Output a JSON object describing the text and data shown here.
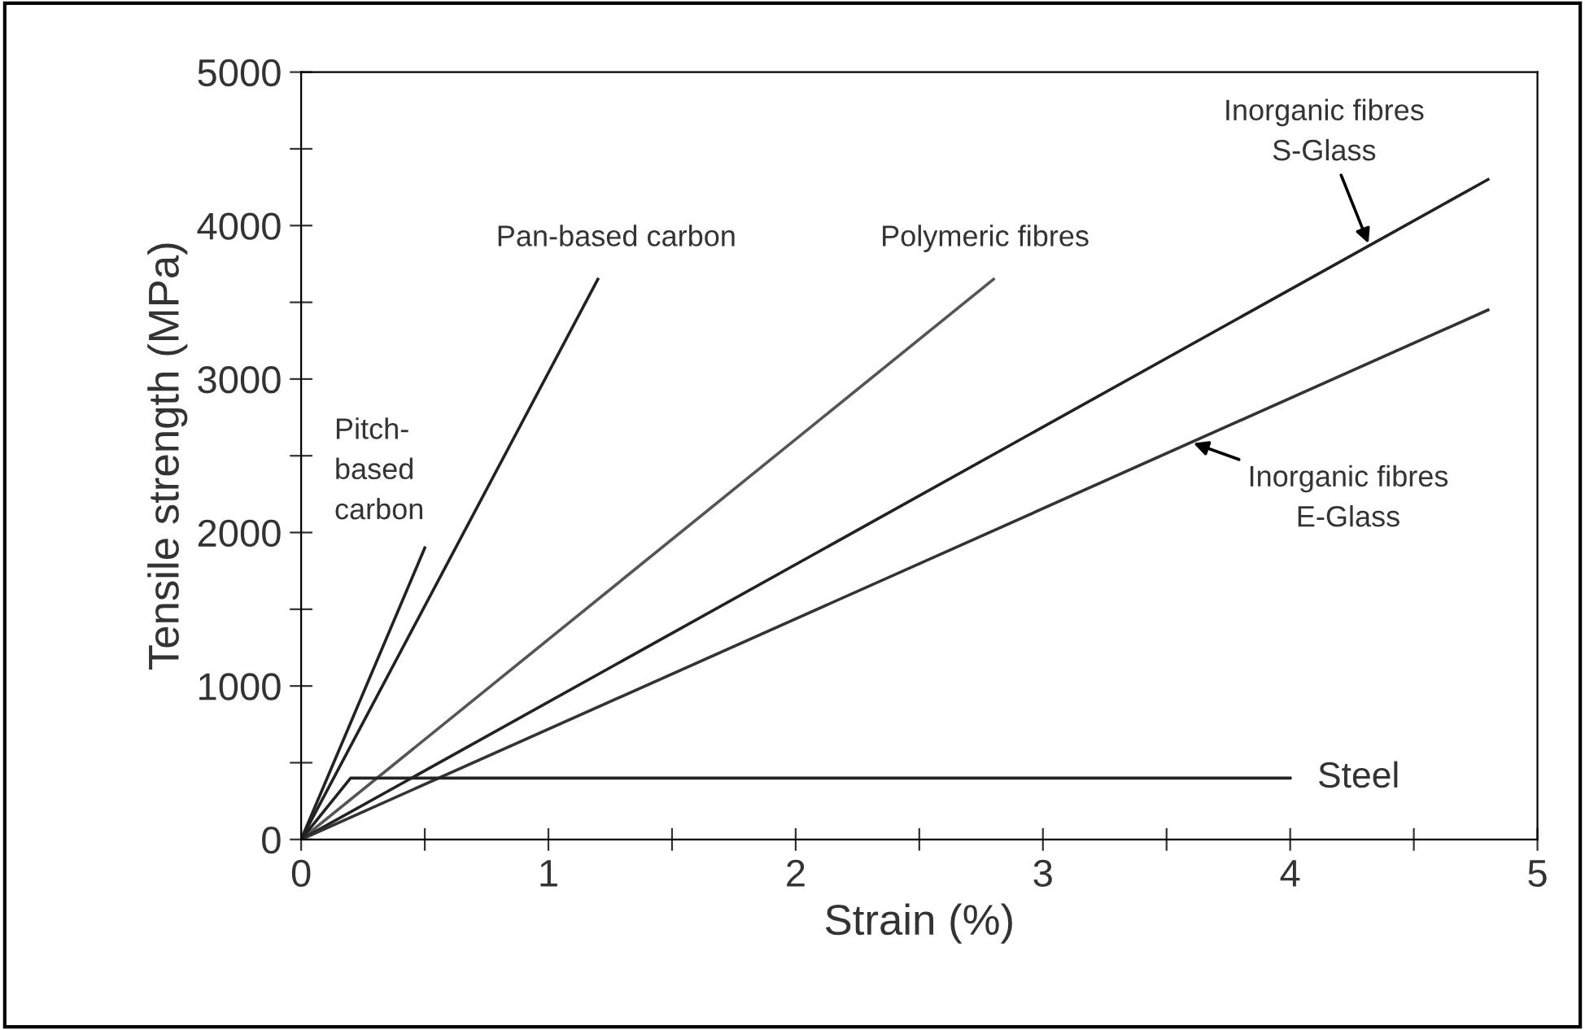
{
  "chart_data": {
    "type": "line",
    "xlabel": "Strain (%)",
    "ylabel": "Tensile strength (MPa)",
    "xlim": [
      0,
      5
    ],
    "ylim": [
      0,
      5000
    ],
    "xticks": [
      0,
      {
        "value": 0.5,
        "label": null
      },
      1,
      {
        "value": 1.5,
        "label": null
      },
      2,
      {
        "value": 2.5,
        "label": null
      },
      3,
      {
        "value": 3.5,
        "label": null
      },
      4,
      {
        "value": 4.5,
        "label": null
      },
      5
    ],
    "yticks": [
      0,
      {
        "value": 500,
        "label": null
      },
      1000,
      {
        "value": 1500,
        "label": null
      },
      2000,
      {
        "value": 2500,
        "label": null
      },
      3000,
      {
        "value": 3500,
        "label": null
      },
      4000,
      {
        "value": 4500,
        "label": null
      },
      5000
    ],
    "grid": false,
    "legend": false,
    "line_style": "solid",
    "series": [
      {
        "name": "Pitch-\nbased\ncarbon",
        "color": "#222222",
        "x": [
          0,
          0.5
        ],
        "values": [
          0,
          1900
        ]
      },
      {
        "name": "Pan-based carbon",
        "color": "#222222",
        "x": [
          0,
          1.2
        ],
        "values": [
          0,
          3650
        ]
      },
      {
        "name": "Polymeric fibres",
        "color": "#555555",
        "x": [
          0,
          2.8
        ],
        "values": [
          0,
          3650
        ]
      },
      {
        "name": "Inorganic fibres\nS-Glass",
        "color": "#222222",
        "x": [
          0,
          4.8
        ],
        "values": [
          0,
          4300
        ]
      },
      {
        "name": "Inorganic fibres\nE-Glass",
        "color": "#333333",
        "x": [
          0,
          4.8
        ],
        "values": [
          0,
          3450
        ]
      },
      {
        "name": "Steel",
        "color": "#222222",
        "x": [
          0,
          0.2,
          4.0
        ],
        "values": [
          0,
          400,
          400
        ]
      }
    ]
  }
}
